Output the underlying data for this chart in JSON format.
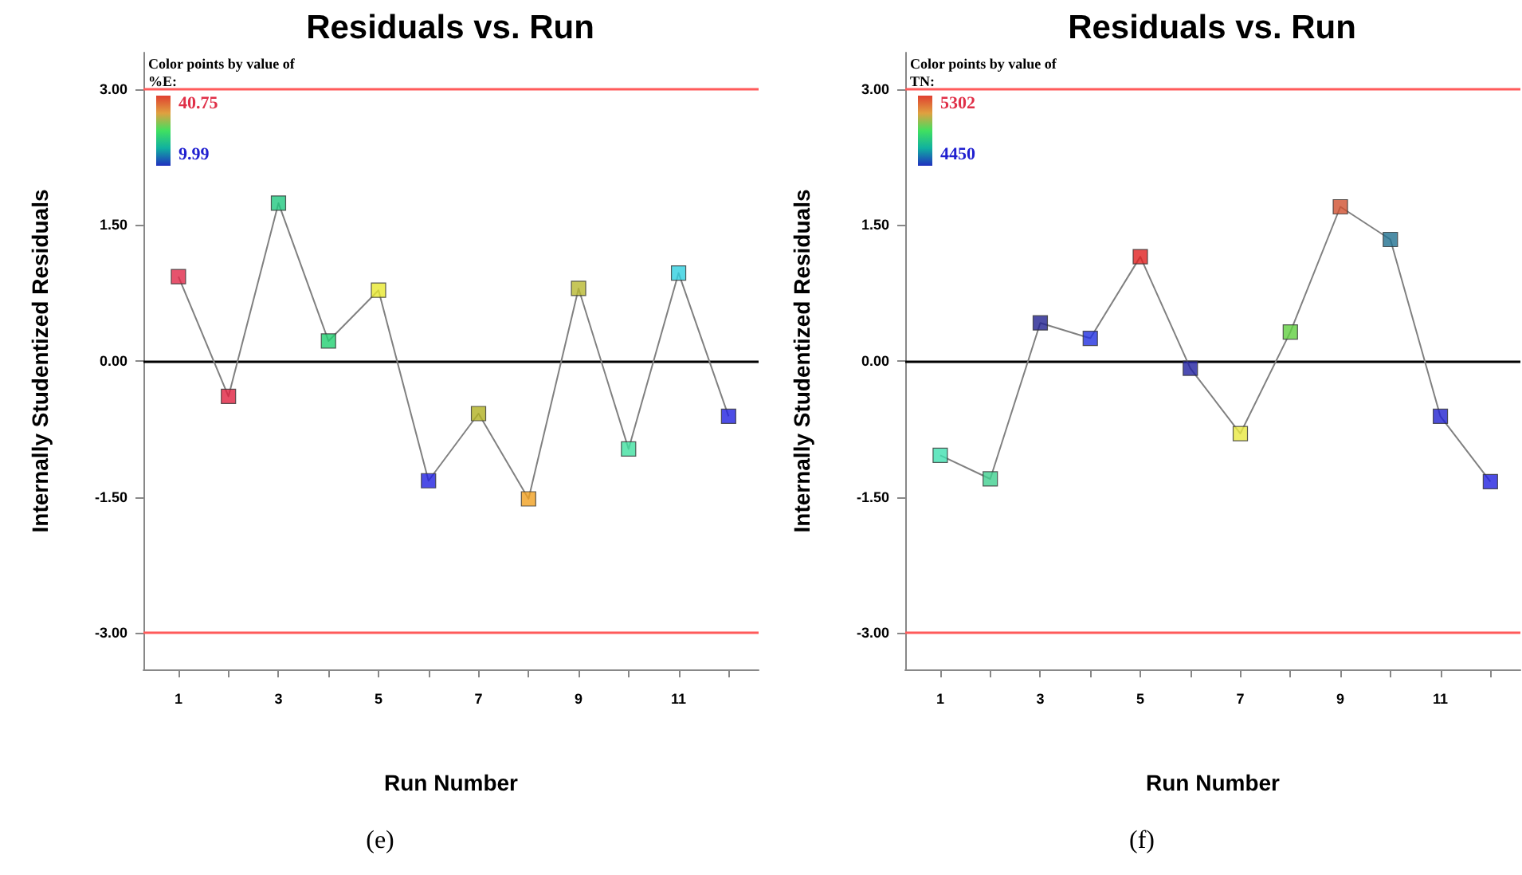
{
  "chart_data": [
    {
      "type": "line",
      "title": "Residuals vs. Run",
      "xlabel": "Run Number",
      "ylabel": "Internally Studentized Residuals",
      "clabel": "Color points by value of\n%E:",
      "annotations": [
        "40.75",
        "9.99",
        "(e)"
      ],
      "x": [
        1,
        2,
        3,
        4,
        5,
        6,
        7,
        8,
        9,
        10,
        11,
        12
      ],
      "series": [
        {
          "color": "#808080",
          "values": [
            0.93,
            -0.39,
            1.74,
            0.22,
            0.78,
            -1.32,
            -0.58,
            -1.52,
            0.8,
            -0.97,
            0.97,
            -0.61
          ],
          "colors": [
            "#e02848",
            "#e02040",
            "#20c880",
            "#20d070",
            "#e8e830",
            "#2020e0",
            "#b0b020",
            "#f0a020",
            "#b8b830",
            "#40e0a0",
            "#30d0e0",
            "#2020e0"
          ]
        }
      ],
      "xlim": [
        0.3,
        12.6
      ],
      "xticks": [
        1,
        {
          "value": 2,
          "label": null
        },
        3,
        {
          "value": 4,
          "label": null
        },
        5,
        {
          "value": 6,
          "label": null
        },
        7,
        {
          "value": 8,
          "label": null
        },
        9,
        {
          "value": 10,
          "label": null
        },
        11,
        {
          "value": 12,
          "label": null
        }
      ],
      "ylim": [
        -3.4,
        3.4
      ],
      "yticks": [
        {
          "value": -3,
          "label": "-3.00"
        },
        {
          "value": -1.5,
          "label": "-1.50"
        },
        {
          "value": 0,
          "label": "0.00"
        },
        {
          "value": 1.5,
          "label": "1.50"
        },
        {
          "value": 3,
          "label": "3.00"
        }
      ],
      "ref_lines": [
        {
          "axis": "y",
          "value": 3,
          "color": "#ff5a5a"
        },
        {
          "axis": "y",
          "value": 0,
          "color": "#000000"
        },
        {
          "axis": "y",
          "value": -3,
          "color": "#ff5a5a"
        }
      ],
      "marker": "square",
      "grid": false
    },
    {
      "type": "line",
      "title": "Residuals vs. Run",
      "xlabel": "Run Number",
      "ylabel": "Internally Studentized Residuals",
      "clabel": "Color points by value of\nTN:",
      "annotations": [
        "5302",
        "4450",
        "(f)"
      ],
      "x": [
        1,
        2,
        3,
        4,
        5,
        6,
        7,
        8,
        9,
        10,
        11,
        12
      ],
      "series": [
        {
          "color": "#808080",
          "values": [
            -1.04,
            -1.3,
            0.42,
            0.25,
            1.15,
            -0.08,
            -0.8,
            0.32,
            1.7,
            1.34,
            -0.61,
            -1.33
          ],
          "colors": [
            "#40e0b0",
            "#40d090",
            "#202090",
            "#2030e0",
            "#e02020",
            "#2020a0",
            "#e8e840",
            "#60d040",
            "#d05030",
            "#207090",
            "#2020d0",
            "#2020e0"
          ]
        }
      ],
      "xlim": [
        0.3,
        12.6
      ],
      "xticks": [
        1,
        {
          "value": 2,
          "label": null
        },
        3,
        {
          "value": 4,
          "label": null
        },
        5,
        {
          "value": 6,
          "label": null
        },
        7,
        {
          "value": 8,
          "label": null
        },
        9,
        {
          "value": 10,
          "label": null
        },
        11,
        {
          "value": 12,
          "label": null
        }
      ],
      "ylim": [
        -3.4,
        3.4
      ],
      "yticks": [
        {
          "value": -3,
          "label": "-3.00"
        },
        {
          "value": -1.5,
          "label": "-1.50"
        },
        {
          "value": 0,
          "label": "0.00"
        },
        {
          "value": 1.5,
          "label": "1.50"
        },
        {
          "value": 3,
          "label": "3.00"
        }
      ],
      "ref_lines": [
        {
          "axis": "y",
          "value": 3,
          "color": "#ff5a5a"
        },
        {
          "axis": "y",
          "value": 0,
          "color": "#000000"
        },
        {
          "axis": "y",
          "value": -3,
          "color": "#ff5a5a"
        }
      ],
      "marker": "square",
      "grid": false
    }
  ]
}
